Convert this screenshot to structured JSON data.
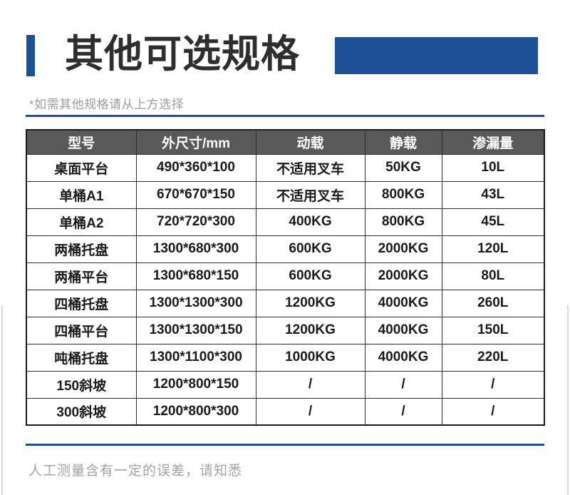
{
  "colors": {
    "accent_blue": "#1d5196",
    "table_header_bg": "#58595b",
    "muted_text": "#9c9c9c",
    "title_color": "#2e2e2e"
  },
  "header": {
    "title": "其他可选规格",
    "note": "*如需其他规格请从上方选择"
  },
  "table": {
    "columns": [
      "型号",
      "外尺寸/mm",
      "动载",
      "静载",
      "渗漏量"
    ],
    "rows": [
      [
        "桌面平台",
        "490*360*100",
        "不适用叉车",
        "50KG",
        "10L"
      ],
      [
        "单桶A1",
        "670*670*150",
        "不适用叉车",
        "800KG",
        "43L"
      ],
      [
        "单桶A2",
        "720*720*300",
        "400KG",
        "800KG",
        "45L"
      ],
      [
        "两桶托盘",
        "1300*680*300",
        "600KG",
        "2000KG",
        "120L"
      ],
      [
        "两桶平台",
        "1300*680*150",
        "600KG",
        "2000KG",
        "80L"
      ],
      [
        "四桶托盘",
        "1300*1300*300",
        "1200KG",
        "4000KG",
        "260L"
      ],
      [
        "四桶平台",
        "1300*1300*150",
        "1200KG",
        "4000KG",
        "150L"
      ],
      [
        "吨桶托盘",
        "1300*1100*300",
        "1000KG",
        "4000KG",
        "220L"
      ],
      [
        "150斜坡",
        "1200*800*150",
        "/",
        "/",
        "/"
      ],
      [
        "300斜坡",
        "1200*800*300",
        "/",
        "/",
        "/"
      ]
    ]
  },
  "footer": {
    "note": "人工测量含有一定的误差，请知悉"
  }
}
